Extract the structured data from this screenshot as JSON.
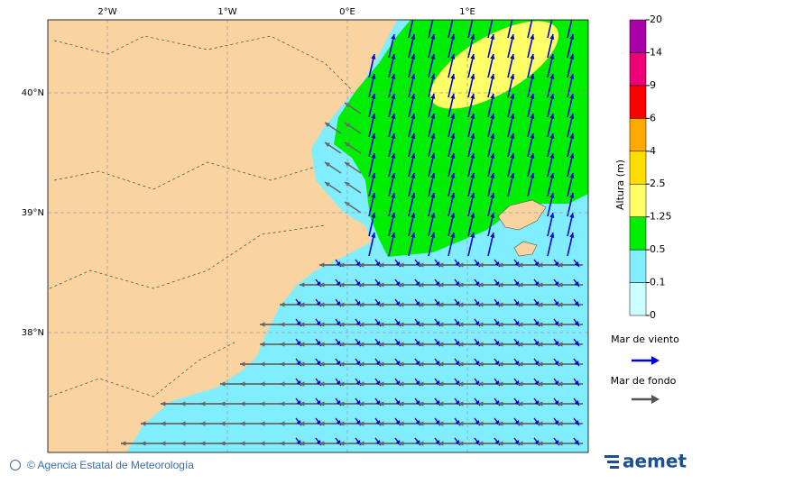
{
  "map": {
    "lon_ticks": [
      "2°W",
      "1°W",
      "0°E",
      "1°E"
    ],
    "lat_ticks": [
      "40°N",
      "39°N",
      "38°N"
    ]
  },
  "colorbar": {
    "title": "Altura (m)",
    "ticks": [
      0,
      0.1,
      0.5,
      1.25,
      2.5,
      4,
      6,
      9,
      14,
      20
    ],
    "colors": [
      "#ccffff",
      "#80eeff",
      "#00ee00",
      "#ffff66",
      "#ffdd00",
      "#ffaa00",
      "#ff0000",
      "#ee0077",
      "#aa00aa"
    ]
  },
  "legend": [
    {
      "label": "Mar de viento",
      "color": "#0000dd"
    },
    {
      "label": "Mar de fondo",
      "color": "#555555"
    }
  ],
  "footer": {
    "credit": "© Agencia Estatal de Meteorología",
    "logo": "aemet"
  }
}
